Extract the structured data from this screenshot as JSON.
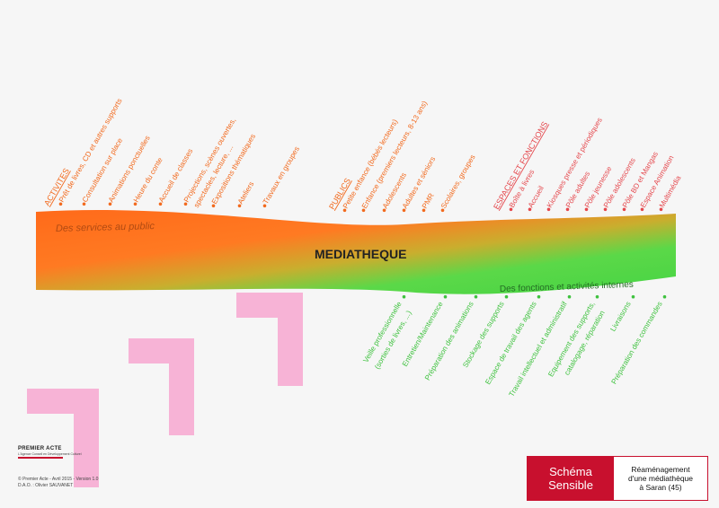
{
  "center_label": "MEDIATHEQUE",
  "band_top_label": "Des services au public",
  "band_bottom_label": "Des fonctions et activités internes",
  "colors": {
    "orange": "#ff6a1a",
    "green": "#4ed84a",
    "label_orange": "#f26a1e",
    "label_red": "#e5484d",
    "label_green": "#3fc23f",
    "pink": "#f7b3d6",
    "brand_red": "#c8102e"
  },
  "groups": {
    "activites": {
      "title": "ACTIVITES",
      "items": [
        "Prêt de livres, CD et autres supports",
        "Consultation sur place",
        "Animations ponctuelles",
        "Heure du conte",
        "Accueil de classes",
        "Projections, scènes ouvertes,",
        "spectacles, lecture, ...",
        "Expositions thématiques",
        "Ateliers",
        "Travaux en groupes"
      ]
    },
    "publics": {
      "title": "PUBLICS",
      "items": [
        "Petite enfance (bébés lecteurs)",
        "Enfance (premiers lecteurs, 8-13 ans)",
        "Adolescents",
        "Adultes et séniors",
        "PMR",
        "Scolaires, groupes"
      ]
    },
    "espaces": {
      "title": "ESPACES ET FONCTIONS",
      "items": [
        "Boîte à livres",
        "Accueil",
        "Kiosques presse et périodiques",
        "Pôle adultes",
        "Pôle jeunesse",
        "Pôle adolescents",
        "Pôle BD et Mangas",
        "Espace Animation",
        "Multimédia"
      ]
    },
    "internes": {
      "items": [
        "Veille professionnelle",
        "(sorties de livres, ...)",
        "Entretien/Maintenance",
        "Préparation des animations",
        "Stockage des supports",
        "Espace de travail des agents",
        "Travail intellectuel et administratif",
        "Equipement des supports,",
        "catalogage, réparation",
        "Livraisons",
        "Préparation des commandes"
      ]
    }
  },
  "logo": {
    "name": "PREMIER ACTE",
    "subtitle": "L'Agence Conseil en Développement Culturel"
  },
  "credits": [
    "© Premier Acte - Avril 2015 - Version 1.0",
    "D.A.O. : Olivier SAUVANET"
  ],
  "title_box": {
    "left_lines": [
      "Schéma",
      "Sensible"
    ],
    "right_lines": [
      "Réaménagement",
      "d'une médiathèque",
      "à Saran (45)"
    ]
  }
}
